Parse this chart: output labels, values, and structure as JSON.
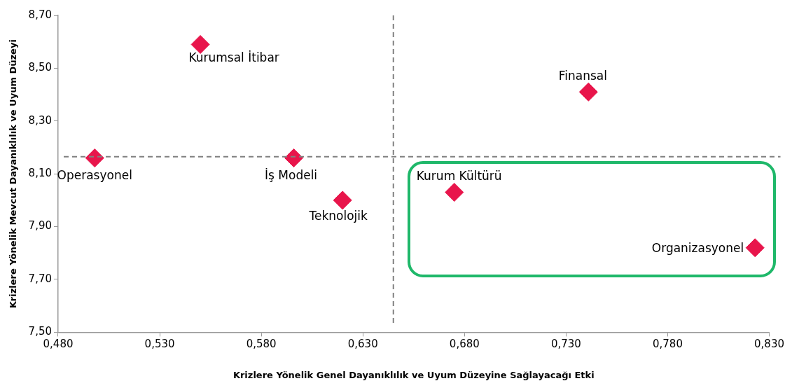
{
  "chart_data": {
    "type": "scatter",
    "xlabel": "Krizlere Yönelik Genel Dayanıklılık ve Uyum Düzeyine Sağlayacağı Etki",
    "ylabel": "Krizlere Yönelik Mevcut Dayanıklılık ve Uyum Düzeyi",
    "series": [
      {
        "color": "#e8154b",
        "x": [
          0.55,
          0.741,
          0.498,
          0.596,
          0.62,
          0.675,
          0.823
        ],
        "values": [
          8.59,
          8.41,
          8.16,
          8.16,
          8.0,
          8.03,
          7.82
        ]
      }
    ],
    "annotations": [
      {
        "text": "Kurumsal İtibar",
        "x": 0.55,
        "y": 8.59
      },
      {
        "text": "Finansal",
        "x": 0.741,
        "y": 8.41
      },
      {
        "text": "Operasyonel",
        "x": 0.498,
        "y": 8.16
      },
      {
        "text": "İş Modeli",
        "x": 0.596,
        "y": 8.16
      },
      {
        "text": "Teknolojik",
        "x": 0.62,
        "y": 8.0
      },
      {
        "text": "Kurum Kültürü",
        "x": 0.675,
        "y": 8.03
      },
      {
        "text": "Organizasyonel",
        "x": 0.823,
        "y": 7.82
      }
    ],
    "ref_lines": [
      {
        "axis": "x",
        "value": 0.645,
        "color": "#808080",
        "line_style": "dashed"
      },
      {
        "axis": "y",
        "value": 8.165,
        "color": "#808080",
        "line_style": "dashed"
      }
    ],
    "marker": "diamond",
    "grid": false,
    "legend": false,
    "xlim": [
      0.48,
      0.83
    ],
    "xticks": [
      {
        "value": 0.48,
        "label": "0,480"
      },
      {
        "value": 0.53,
        "label": "0,530"
      },
      {
        "value": 0.58,
        "label": "0,580"
      },
      {
        "value": 0.63,
        "label": "0,630"
      },
      {
        "value": 0.68,
        "label": "0,680"
      },
      {
        "value": 0.73,
        "label": "0,730"
      },
      {
        "value": 0.78,
        "label": "0,780"
      },
      {
        "value": 0.83,
        "label": "0,830"
      }
    ],
    "ylim": [
      7.5,
      8.7
    ],
    "yticks": [
      {
        "value": 7.5,
        "label": "7,50"
      },
      {
        "value": 7.7,
        "label": "7,70"
      },
      {
        "value": 7.9,
        "label": "7,90"
      },
      {
        "value": 8.1,
        "label": "8,10"
      },
      {
        "value": 8.3,
        "label": "8,30"
      },
      {
        "value": 8.5,
        "label": "8,50"
      },
      {
        "value": 8.7,
        "label": "8,70"
      }
    ]
  }
}
